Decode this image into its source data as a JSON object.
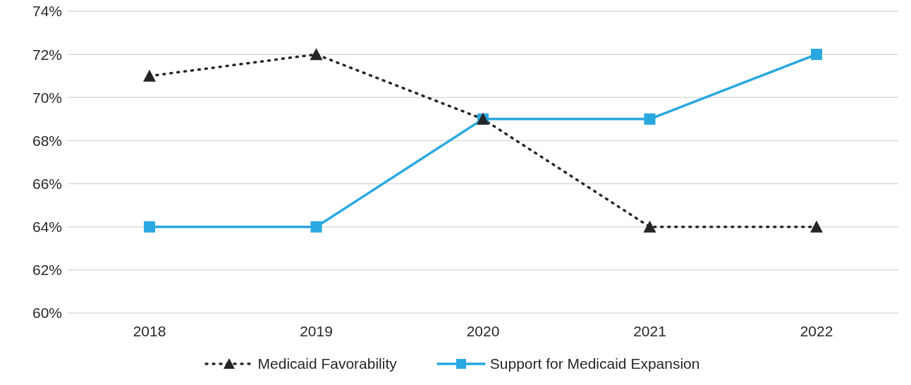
{
  "chart_data": {
    "type": "line",
    "categories": [
      "2018",
      "2019",
      "2020",
      "2021",
      "2022"
    ],
    "series": [
      {
        "name": "Medicaid Favorability",
        "color": "#262626",
        "values": [
          71,
          72,
          69,
          64,
          64
        ],
        "marker": "triangle",
        "line_style": "dotted"
      },
      {
        "name": "Support for Medicaid Expansion",
        "color": "#29a8e0",
        "values": [
          64,
          64,
          69,
          69,
          72
        ],
        "marker": "square",
        "line_style": "solid"
      }
    ],
    "ylim": [
      60,
      74
    ],
    "yticks": [
      {
        "value": 60,
        "label": "60%"
      },
      {
        "value": 62,
        "label": "62%"
      },
      {
        "value": 64,
        "label": "64%"
      },
      {
        "value": 66,
        "label": "66%"
      },
      {
        "value": 68,
        "label": "68%"
      },
      {
        "value": 70,
        "label": "70%"
      },
      {
        "value": 72,
        "label": "72%"
      },
      {
        "value": 74,
        "label": "74%"
      }
    ],
    "grid": "y",
    "legend": "bottom"
  }
}
